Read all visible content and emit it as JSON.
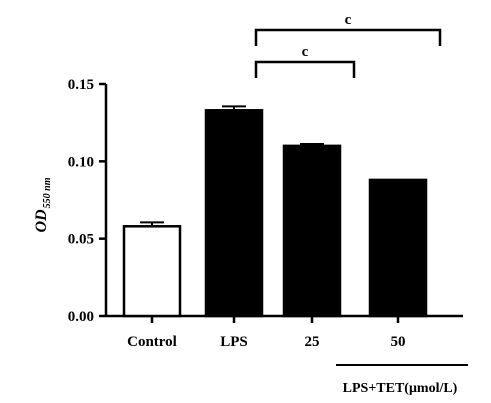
{
  "chart_data": {
    "type": "bar",
    "ylabel": "OD",
    "ylabel_subscript": "550 nm",
    "ylim": [
      0,
      0.15
    ],
    "yticks": [
      "0.00",
      "0.05",
      "0.10",
      "0.15"
    ],
    "categories": [
      "Control",
      "LPS",
      "25",
      "50"
    ],
    "values": [
      0.058,
      0.133,
      0.11,
      0.088
    ],
    "errors": [
      0.0025,
      0.0025,
      0.0012,
      0
    ],
    "bar_fills": [
      "#ffffff",
      "#000000",
      "#000000",
      "#000000"
    ],
    "group_label": "LPS+TET(μmol/L)",
    "significance": [
      {
        "from": "LPS",
        "to": "25",
        "label": "c"
      },
      {
        "from": "LPS",
        "to": "50",
        "label": "c"
      }
    ]
  }
}
